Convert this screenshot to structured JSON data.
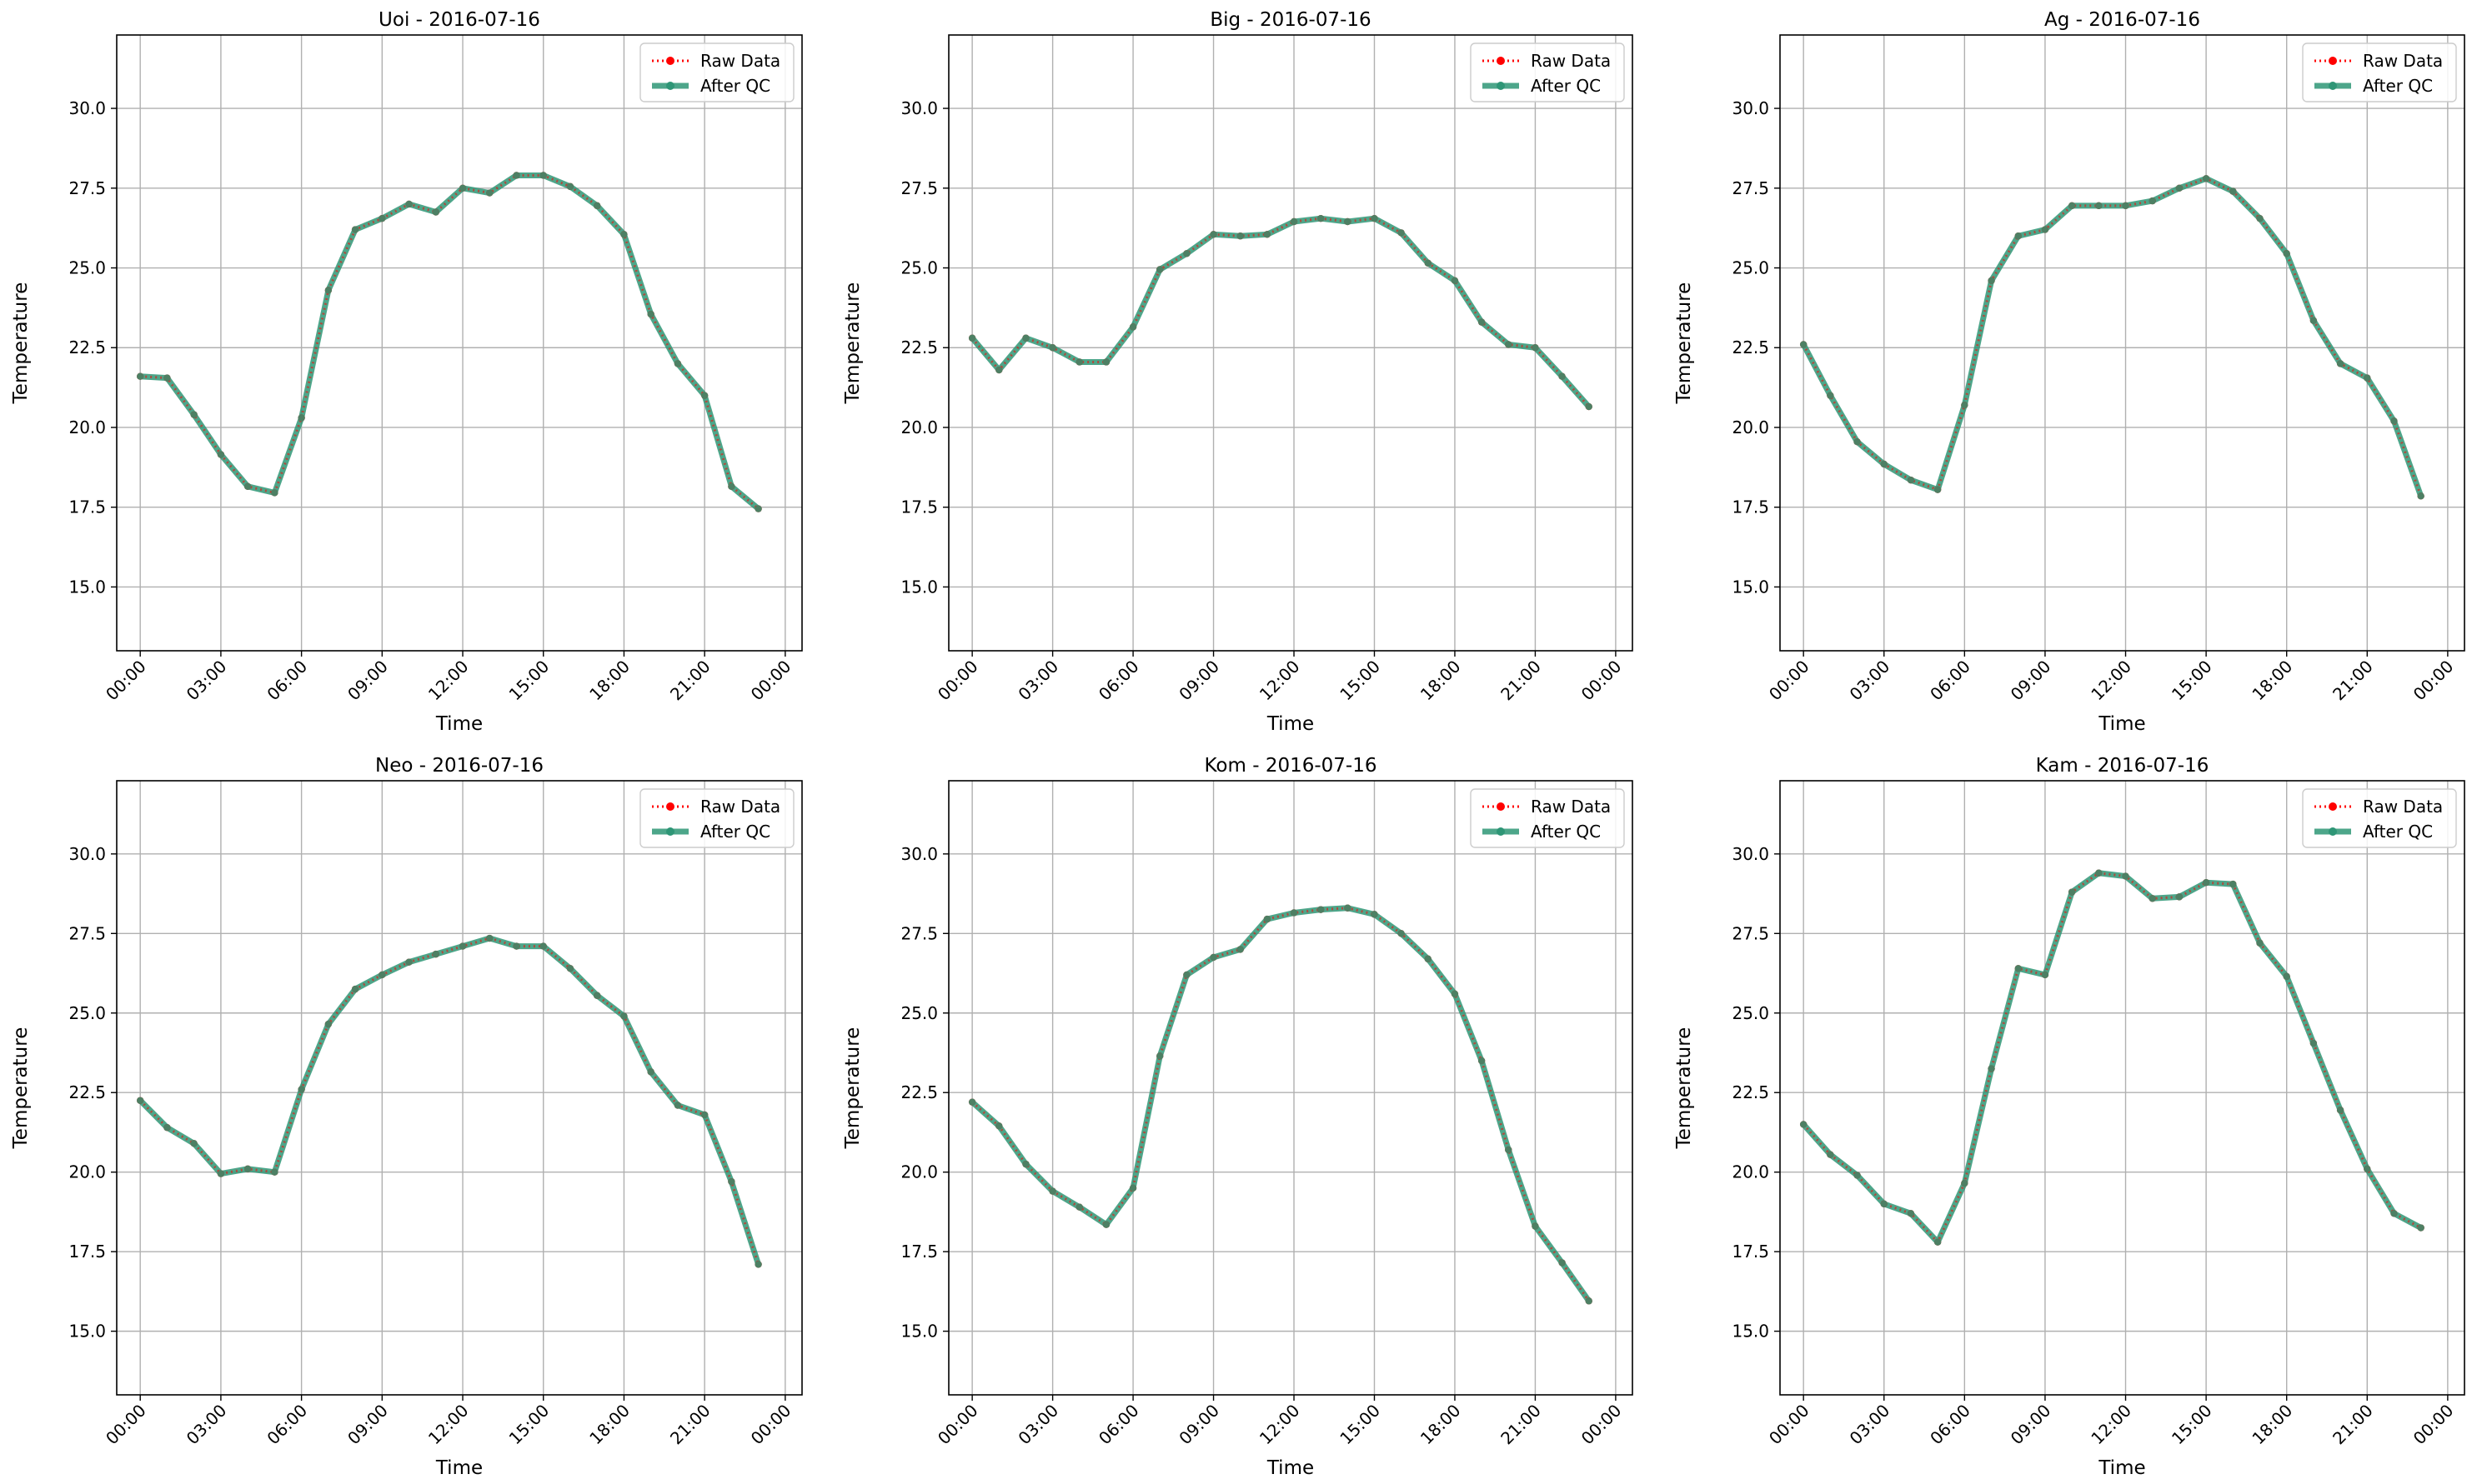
{
  "colors": {
    "raw": "#ff0000",
    "qc": "#2e9676",
    "grid": "#b0b0b0",
    "axis": "#000000",
    "legend_border": "#cccccc"
  },
  "chart_data": [
    {
      "type": "line",
      "title": "Uoi - 2016-07-16",
      "xlabel": "Time",
      "ylabel": "Temperature",
      "ylim": [
        13.0,
        32.3
      ],
      "yticks": [
        "15.0",
        "17.5",
        "20.0",
        "22.5",
        "25.0",
        "27.5",
        "30.0"
      ],
      "xticks": [
        "00:00",
        "03:00",
        "06:00",
        "09:00",
        "12:00",
        "15:00",
        "18:00",
        "21:00",
        "00:00"
      ],
      "legend": {
        "position": "upper right",
        "entries": [
          "Raw Data",
          "After QC"
        ]
      },
      "grid": true,
      "x": [
        "00:00",
        "01:00",
        "02:00",
        "03:00",
        "04:00",
        "05:00",
        "06:00",
        "07:00",
        "08:00",
        "09:00",
        "10:00",
        "11:00",
        "12:00",
        "13:00",
        "14:00",
        "15:00",
        "16:00",
        "17:00",
        "18:00",
        "19:00",
        "20:00",
        "21:00",
        "22:00",
        "23:00"
      ],
      "series": [
        {
          "name": "Raw Data",
          "values": [
            21.6,
            21.55,
            20.4,
            19.15,
            18.15,
            17.95,
            20.3,
            24.3,
            26.2,
            26.55,
            27.0,
            26.75,
            27.5,
            27.35,
            27.9,
            27.9,
            27.55,
            26.95,
            26.05,
            23.55,
            22.0,
            21.0,
            18.15,
            17.45
          ]
        },
        {
          "name": "After QC",
          "values": [
            21.6,
            21.55,
            20.4,
            19.15,
            18.15,
            17.95,
            20.3,
            24.3,
            26.2,
            26.55,
            27.0,
            26.75,
            27.5,
            27.35,
            27.9,
            27.9,
            27.55,
            26.95,
            26.05,
            23.55,
            22.0,
            21.0,
            18.15,
            17.45
          ]
        }
      ]
    },
    {
      "type": "line",
      "title": "Big - 2016-07-16",
      "xlabel": "Time",
      "ylabel": "Temperature",
      "ylim": [
        13.0,
        32.3
      ],
      "yticks": [
        "15.0",
        "17.5",
        "20.0",
        "22.5",
        "25.0",
        "27.5",
        "30.0"
      ],
      "xticks": [
        "00:00",
        "03:00",
        "06:00",
        "09:00",
        "12:00",
        "15:00",
        "18:00",
        "21:00",
        "00:00"
      ],
      "legend": {
        "position": "upper right",
        "entries": [
          "Raw Data",
          "After QC"
        ]
      },
      "grid": true,
      "x": [
        "00:00",
        "01:00",
        "02:00",
        "03:00",
        "04:00",
        "05:00",
        "06:00",
        "07:00",
        "08:00",
        "09:00",
        "10:00",
        "11:00",
        "12:00",
        "13:00",
        "14:00",
        "15:00",
        "16:00",
        "17:00",
        "18:00",
        "19:00",
        "20:00",
        "21:00",
        "22:00",
        "23:00"
      ],
      "series": [
        {
          "name": "Raw Data",
          "values": [
            22.8,
            21.8,
            22.8,
            22.5,
            22.05,
            22.05,
            23.15,
            24.95,
            25.45,
            26.05,
            26.0,
            26.05,
            26.45,
            26.55,
            26.45,
            26.55,
            26.1,
            25.15,
            24.6,
            23.3,
            22.6,
            22.5,
            21.6,
            20.65
          ]
        },
        {
          "name": "After QC",
          "values": [
            22.8,
            21.8,
            22.8,
            22.5,
            22.05,
            22.05,
            23.15,
            24.95,
            25.45,
            26.05,
            26.0,
            26.05,
            26.45,
            26.55,
            26.45,
            26.55,
            26.1,
            25.15,
            24.6,
            23.3,
            22.6,
            22.5,
            21.6,
            20.65
          ]
        }
      ]
    },
    {
      "type": "line",
      "title": "Ag - 2016-07-16",
      "xlabel": "Time",
      "ylabel": "Temperature",
      "ylim": [
        13.0,
        32.3
      ],
      "yticks": [
        "15.0",
        "17.5",
        "20.0",
        "22.5",
        "25.0",
        "27.5",
        "30.0"
      ],
      "xticks": [
        "00:00",
        "03:00",
        "06:00",
        "09:00",
        "12:00",
        "15:00",
        "18:00",
        "21:00",
        "00:00"
      ],
      "legend": {
        "position": "upper right",
        "entries": [
          "Raw Data",
          "After QC"
        ]
      },
      "grid": true,
      "x": [
        "00:00",
        "01:00",
        "02:00",
        "03:00",
        "04:00",
        "05:00",
        "06:00",
        "07:00",
        "08:00",
        "09:00",
        "10:00",
        "11:00",
        "12:00",
        "13:00",
        "14:00",
        "15:00",
        "16:00",
        "17:00",
        "18:00",
        "19:00",
        "20:00",
        "21:00",
        "22:00",
        "23:00"
      ],
      "series": [
        {
          "name": "Raw Data",
          "values": [
            22.6,
            21.0,
            19.55,
            18.85,
            18.35,
            18.05,
            20.7,
            24.6,
            26.0,
            26.2,
            26.95,
            26.95,
            26.95,
            27.1,
            27.5,
            27.8,
            27.4,
            26.55,
            25.45,
            23.35,
            22.0,
            21.55,
            20.2,
            17.85
          ]
        },
        {
          "name": "After QC",
          "values": [
            22.6,
            21.0,
            19.55,
            18.85,
            18.35,
            18.05,
            20.7,
            24.6,
            26.0,
            26.2,
            26.95,
            26.95,
            26.95,
            27.1,
            27.5,
            27.8,
            27.4,
            26.55,
            25.45,
            23.35,
            22.0,
            21.55,
            20.2,
            17.85
          ]
        }
      ]
    },
    {
      "type": "line",
      "title": "Neo - 2016-07-16",
      "xlabel": "Time",
      "ylabel": "Temperature",
      "ylim": [
        13.0,
        32.3
      ],
      "yticks": [
        "15.0",
        "17.5",
        "20.0",
        "22.5",
        "25.0",
        "27.5",
        "30.0"
      ],
      "xticks": [
        "00:00",
        "03:00",
        "06:00",
        "09:00",
        "12:00",
        "15:00",
        "18:00",
        "21:00",
        "00:00"
      ],
      "legend": {
        "position": "upper right",
        "entries": [
          "Raw Data",
          "After QC"
        ]
      },
      "grid": true,
      "x": [
        "00:00",
        "01:00",
        "02:00",
        "03:00",
        "04:00",
        "05:00",
        "06:00",
        "07:00",
        "08:00",
        "09:00",
        "10:00",
        "11:00",
        "12:00",
        "13:00",
        "14:00",
        "15:00",
        "16:00",
        "17:00",
        "18:00",
        "19:00",
        "20:00",
        "21:00",
        "22:00",
        "23:00"
      ],
      "series": [
        {
          "name": "Raw Data",
          "values": [
            22.25,
            21.4,
            20.9,
            19.95,
            20.1,
            20.0,
            22.6,
            24.65,
            25.75,
            26.2,
            26.6,
            26.85,
            27.1,
            27.35,
            27.1,
            27.1,
            26.4,
            25.55,
            24.9,
            23.15,
            22.1,
            21.8,
            19.7,
            17.1
          ]
        },
        {
          "name": "After QC",
          "values": [
            22.25,
            21.4,
            20.9,
            19.95,
            20.1,
            20.0,
            22.6,
            24.65,
            25.75,
            26.2,
            26.6,
            26.85,
            27.1,
            27.35,
            27.1,
            27.1,
            26.4,
            25.55,
            24.9,
            23.15,
            22.1,
            21.8,
            19.7,
            17.1
          ]
        }
      ]
    },
    {
      "type": "line",
      "title": "Kom - 2016-07-16",
      "xlabel": "Time",
      "ylabel": "Temperature",
      "ylim": [
        13.0,
        32.3
      ],
      "yticks": [
        "15.0",
        "17.5",
        "20.0",
        "22.5",
        "25.0",
        "27.5",
        "30.0"
      ],
      "xticks": [
        "00:00",
        "03:00",
        "06:00",
        "09:00",
        "12:00",
        "15:00",
        "18:00",
        "21:00",
        "00:00"
      ],
      "legend": {
        "position": "upper right",
        "entries": [
          "Raw Data",
          "After QC"
        ]
      },
      "grid": true,
      "x": [
        "00:00",
        "01:00",
        "02:00",
        "03:00",
        "04:00",
        "05:00",
        "06:00",
        "07:00",
        "08:00",
        "09:00",
        "10:00",
        "11:00",
        "12:00",
        "13:00",
        "14:00",
        "15:00",
        "16:00",
        "17:00",
        "18:00",
        "19:00",
        "20:00",
        "21:00",
        "22:00",
        "23:00"
      ],
      "series": [
        {
          "name": "Raw Data",
          "values": [
            22.2,
            21.45,
            20.25,
            19.4,
            18.9,
            18.35,
            19.5,
            23.65,
            26.2,
            26.75,
            27.0,
            27.95,
            28.15,
            28.25,
            28.3,
            28.1,
            27.5,
            26.7,
            25.6,
            23.5,
            20.7,
            18.3,
            17.15,
            15.95
          ]
        },
        {
          "name": "After QC",
          "values": [
            22.2,
            21.45,
            20.25,
            19.4,
            18.9,
            18.35,
            19.5,
            23.65,
            26.2,
            26.75,
            27.0,
            27.95,
            28.15,
            28.25,
            28.3,
            28.1,
            27.5,
            26.7,
            25.6,
            23.5,
            20.7,
            18.3,
            17.15,
            15.95
          ]
        }
      ]
    },
    {
      "type": "line",
      "title": "Kam - 2016-07-16",
      "xlabel": "Time",
      "ylabel": "Temperature",
      "ylim": [
        13.0,
        32.3
      ],
      "yticks": [
        "15.0",
        "17.5",
        "20.0",
        "22.5",
        "25.0",
        "27.5",
        "30.0"
      ],
      "xticks": [
        "00:00",
        "03:00",
        "06:00",
        "09:00",
        "12:00",
        "15:00",
        "18:00",
        "21:00",
        "00:00"
      ],
      "legend": {
        "position": "upper right",
        "entries": [
          "Raw Data",
          "After QC"
        ]
      },
      "grid": true,
      "x": [
        "00:00",
        "01:00",
        "02:00",
        "03:00",
        "04:00",
        "05:00",
        "06:00",
        "07:00",
        "08:00",
        "09:00",
        "10:00",
        "11:00",
        "12:00",
        "13:00",
        "14:00",
        "15:00",
        "16:00",
        "17:00",
        "18:00",
        "19:00",
        "20:00",
        "21:00",
        "22:00",
        "23:00"
      ],
      "series": [
        {
          "name": "Raw Data",
          "values": [
            21.5,
            20.55,
            19.9,
            19.0,
            18.7,
            17.8,
            19.65,
            23.25,
            26.4,
            26.2,
            28.8,
            29.4,
            29.3,
            28.6,
            28.65,
            29.1,
            29.05,
            27.2,
            26.15,
            24.05,
            21.95,
            20.1,
            18.7,
            18.25
          ]
        },
        {
          "name": "After QC",
          "values": [
            21.5,
            20.55,
            19.9,
            19.0,
            18.7,
            17.8,
            19.65,
            23.25,
            26.4,
            26.2,
            28.8,
            29.4,
            29.3,
            28.6,
            28.65,
            29.1,
            29.05,
            27.2,
            26.15,
            24.05,
            21.95,
            20.1,
            18.7,
            18.25
          ]
        }
      ]
    }
  ]
}
